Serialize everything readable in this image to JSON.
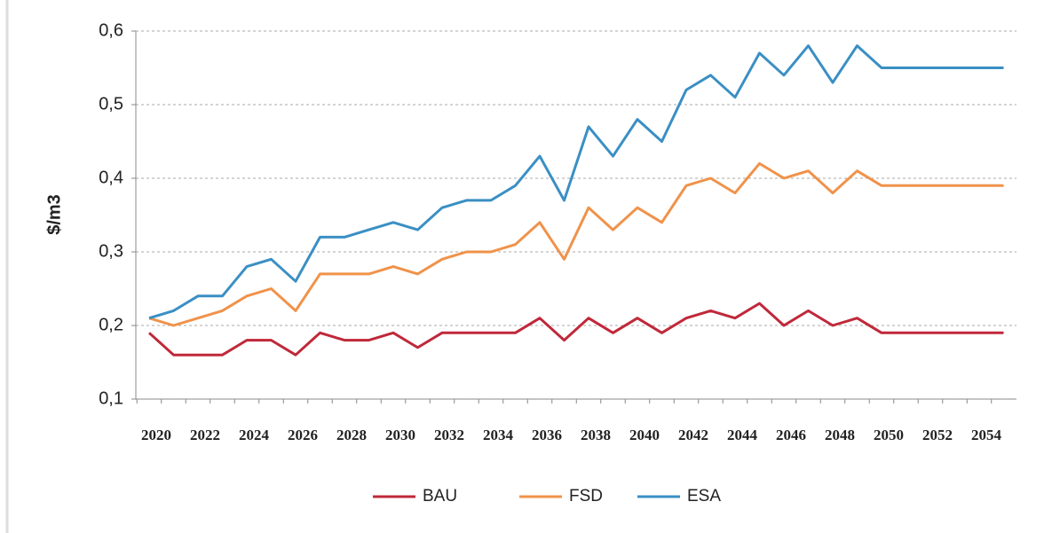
{
  "chart_data": {
    "type": "line",
    "y_label": "$/m3",
    "categories": [
      "2020",
      null,
      "2022",
      null,
      "2024",
      null,
      "2026",
      null,
      "2028",
      null,
      "2030",
      null,
      "2032",
      null,
      "2034",
      null,
      "2036",
      null,
      "2038",
      null,
      "2040",
      null,
      "2042",
      null,
      "2044",
      null,
      "2046",
      null,
      "2048",
      null,
      "2050",
      null,
      "2052",
      null,
      "2054",
      null
    ],
    "series": [
      {
        "name": "BAU",
        "color": "#c0283a",
        "values": [
          0.19,
          0.16,
          0.16,
          0.16,
          0.18,
          0.18,
          0.16,
          0.19,
          0.18,
          0.18,
          0.19,
          0.17,
          0.19,
          0.19,
          0.19,
          0.19,
          0.21,
          0.18,
          0.21,
          0.19,
          0.21,
          0.19,
          0.21,
          0.22,
          0.21,
          0.23,
          0.2,
          0.22,
          0.2,
          0.21,
          0.19,
          0.19,
          0.19,
          0.19,
          0.19,
          0.19
        ]
      },
      {
        "name": "FSD",
        "color": "#f0924a",
        "values": [
          0.21,
          0.2,
          0.21,
          0.22,
          0.24,
          0.25,
          0.22,
          0.27,
          0.27,
          0.27,
          0.28,
          0.27,
          0.29,
          0.3,
          0.3,
          0.31,
          0.34,
          0.29,
          0.36,
          0.33,
          0.36,
          0.34,
          0.39,
          0.4,
          0.38,
          0.42,
          0.4,
          0.41,
          0.38,
          0.41,
          0.39,
          0.39,
          0.39,
          0.39,
          0.39,
          0.39
        ]
      },
      {
        "name": "ESA",
        "color": "#3a8fc4",
        "values": [
          0.21,
          0.22,
          0.24,
          0.24,
          0.28,
          0.29,
          0.26,
          0.32,
          0.32,
          0.33,
          0.34,
          0.33,
          0.36,
          0.37,
          0.37,
          0.39,
          0.43,
          0.37,
          0.47,
          0.43,
          0.48,
          0.45,
          0.52,
          0.54,
          0.51,
          0.57,
          0.54,
          0.58,
          0.53,
          0.58,
          0.55,
          0.55,
          0.55,
          0.55,
          0.55,
          0.55
        ]
      }
    ],
    "ylim": [
      0.1,
      0.6
    ],
    "yticks": [
      {
        "value": 0.1,
        "label": "0,1"
      },
      {
        "value": 0.2,
        "label": "0,2"
      },
      {
        "value": 0.3,
        "label": "0,3"
      },
      {
        "value": 0.4,
        "label": "0,4"
      },
      {
        "value": 0.5,
        "label": "0,5"
      },
      {
        "value": 0.6,
        "label": "0,6"
      }
    ],
    "grid": true,
    "legend": "bottom"
  }
}
